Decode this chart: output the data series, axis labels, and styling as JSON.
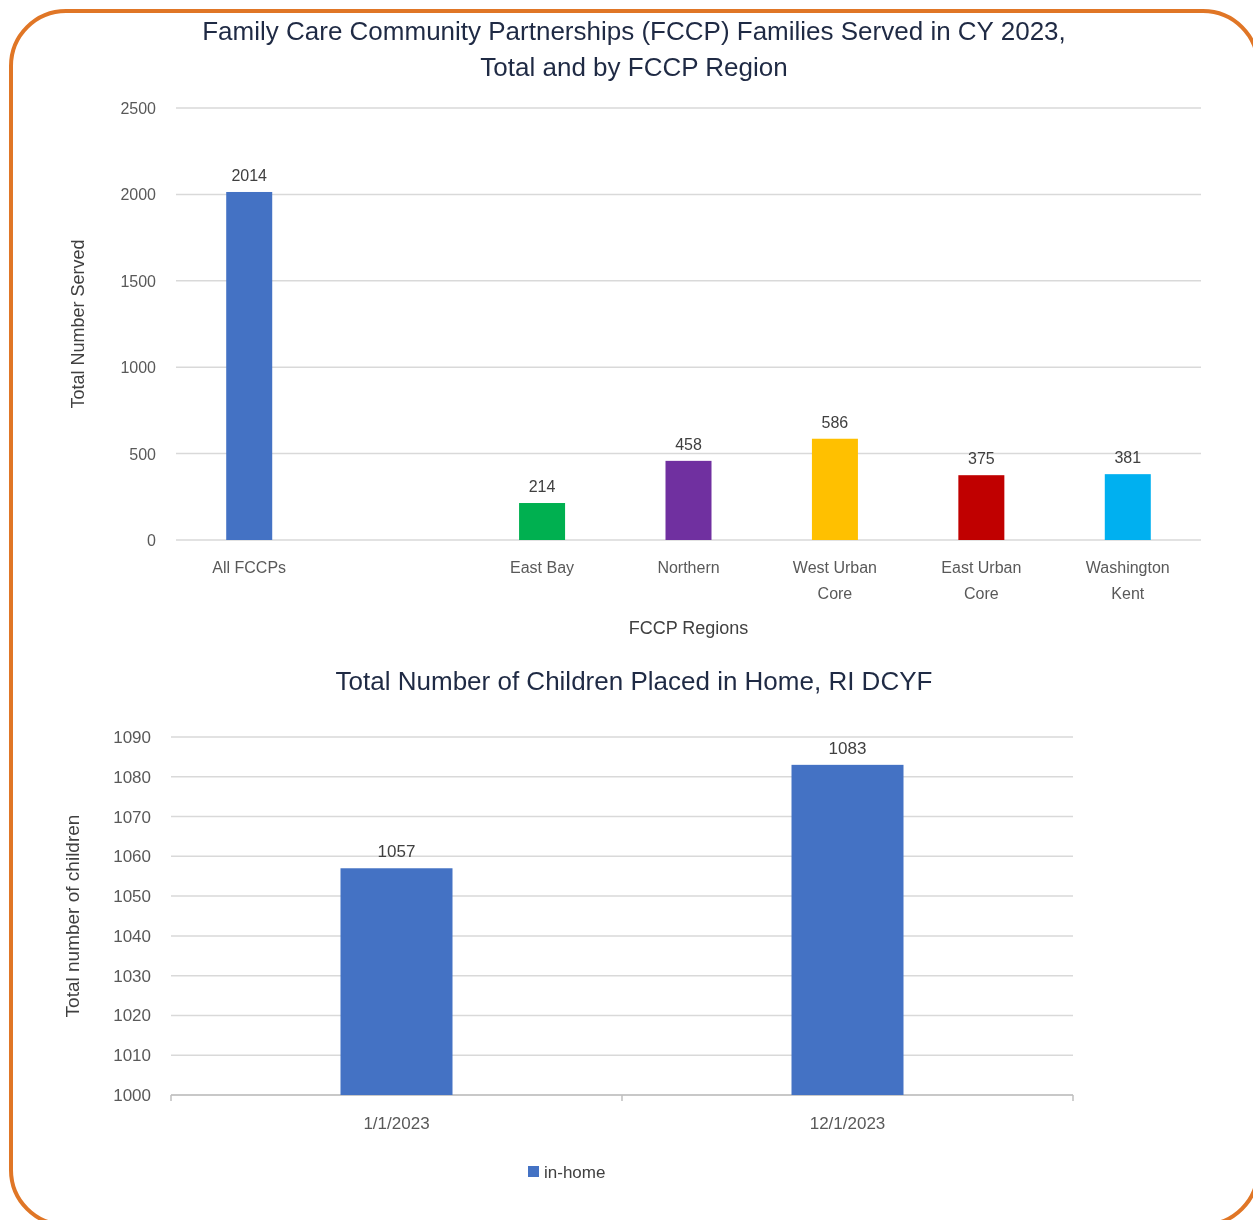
{
  "chart_data": [
    {
      "type": "bar",
      "title": "Family Care Community Partnerships (FCCP) Families Served in CY 2023,\nTotal and by FCCP Region",
      "xlabel": "FCCP Regions",
      "ylabel": "Total Number Served",
      "categories": [
        "All FCCPs",
        null,
        "East Bay",
        "Northern",
        "West Urban Core",
        "East Urban Core",
        "Washington Kent"
      ],
      "values": [
        2014,
        null,
        214,
        458,
        586,
        375,
        381
      ],
      "colors": [
        "#4472c4",
        "#4472c4",
        "#00b050",
        "#7030a0",
        "#ffc000",
        "#c00000",
        "#00b0f0"
      ],
      "ylim": [
        0,
        2500
      ],
      "yticks": [
        0,
        500,
        1000,
        1500,
        2000,
        2500
      ],
      "grid": "y",
      "data_labels": true
    },
    {
      "type": "bar",
      "title": "Total Number of Children Placed in Home, RI DCYF",
      "ylabel": "Total number of children",
      "categories": [
        "1/1/2023",
        "12/1/2023"
      ],
      "series": [
        {
          "name": "in-home",
          "color": "#4472c4",
          "values": [
            1057,
            1083
          ]
        }
      ],
      "ylim": [
        1000,
        1090
      ],
      "yticks": [
        1000,
        1010,
        1020,
        1030,
        1040,
        1050,
        1060,
        1070,
        1080,
        1090
      ],
      "grid": "y",
      "legend": "bottom",
      "data_labels": true
    }
  ]
}
